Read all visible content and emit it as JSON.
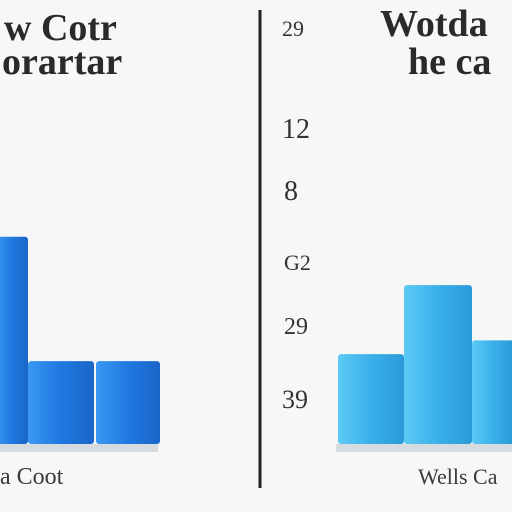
{
  "colors": {
    "background": "#f7f7f7",
    "left_bar": "#1f78e0",
    "left_bar_light": "#3a98f2",
    "right_bar": "#3ab0ea",
    "right_bar_light": "#5ccaf4",
    "divider": "#222222",
    "shadow": "#d6dbe0"
  },
  "chart_data": [
    {
      "type": "bar",
      "title_lines": [
        "w Cotr",
        "orartar"
      ],
      "xlabel": "a Coot",
      "categories": [
        "",
        "",
        ""
      ],
      "values": [
        3.0,
        1.2,
        1.2
      ],
      "ylim": [
        0,
        5.5
      ]
    },
    {
      "type": "bar",
      "title_lines": [
        "Wotda",
        "he ca"
      ],
      "xlabel": "Wells Ca",
      "categories": [
        "",
        "",
        ""
      ],
      "values": [
        1.3,
        2.3,
        1.5
      ],
      "ylim": [
        0,
        5.5
      ]
    }
  ],
  "axis_ticks": [
    "29",
    "12",
    "8",
    "G2",
    "29",
    "39"
  ]
}
